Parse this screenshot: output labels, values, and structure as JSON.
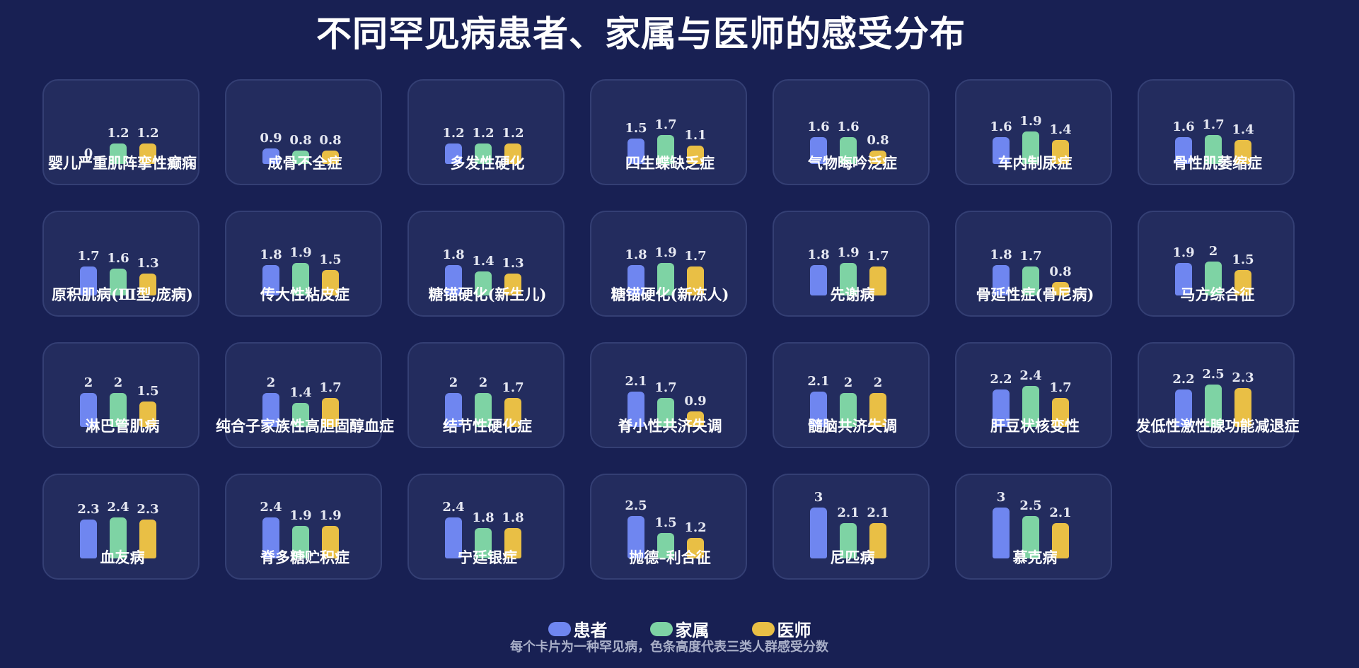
{
  "title": "不同罕见病患者、家属与医师的感受分布",
  "footnote": "每个卡片为一种罕见病，色条高度代表三类人群感受分数",
  "colors": {
    "patient": "#6f86f0",
    "family": "#7ed3a4",
    "doctor": "#e9bf45",
    "background": "#182053",
    "card": "#232c5e"
  },
  "legend": [
    {
      "label": "患者",
      "color": "#6f86f0"
    },
    {
      "label": "家属",
      "color": "#7ed3a4"
    },
    {
      "label": "医师",
      "color": "#e9bf45"
    }
  ],
  "chart_data": {
    "type": "bar",
    "series_names": [
      "患者",
      "家属",
      "医师"
    ],
    "categories": [
      {
        "name": "婴儿严重肌阵挛性癫痫",
        "values": [
          0,
          1.2,
          1.2
        ]
      },
      {
        "name": "成骨不全症",
        "values": [
          0.9,
          0.8,
          0.8
        ]
      },
      {
        "name": "多发性硬化",
        "values": [
          1.2,
          1.2,
          1.2
        ]
      },
      {
        "name": "四生蝶缺乏症",
        "values": [
          1.5,
          1.7,
          1.1
        ]
      },
      {
        "name": "气物晦吟泛症",
        "values": [
          1.6,
          1.6,
          0.8
        ]
      },
      {
        "name": "车内制尿症",
        "values": [
          1.6,
          1.9,
          1.4
        ]
      },
      {
        "name": "骨性肌萎缩症",
        "values": [
          1.6,
          1.7,
          1.4
        ]
      },
      {
        "name": "原积肌病(Ⅲ型,庞病)",
        "values": [
          1.7,
          1.6,
          1.3
        ]
      },
      {
        "name": "传大性粘皮症",
        "values": [
          1.8,
          1.9,
          1.5
        ]
      },
      {
        "name": "糖锚硬化(新生儿)",
        "values": [
          1.8,
          1.4,
          1.3
        ]
      },
      {
        "name": "糖锚硬化(新冻人)",
        "values": [
          1.8,
          1.9,
          1.7
        ]
      },
      {
        "name": "先谢病",
        "values": [
          1.8,
          1.9,
          1.7
        ]
      },
      {
        "name": "骨延性症(骨尼病)",
        "values": [
          1.8,
          1.7,
          0.8
        ]
      },
      {
        "name": "马方综合征",
        "values": [
          1.9,
          2,
          1.5
        ]
      },
      {
        "name": "淋巴管肌病",
        "values": [
          2,
          2,
          1.5
        ]
      },
      {
        "name": "纯合子家族性高胆固醇血症",
        "values": [
          2,
          1.4,
          1.7
        ]
      },
      {
        "name": "结节性硬化症",
        "values": [
          2,
          2,
          1.7
        ]
      },
      {
        "name": "脊小性共济失调",
        "values": [
          2.1,
          1.7,
          0.9
        ]
      },
      {
        "name": "髓脑共济失调",
        "values": [
          2.1,
          2,
          2
        ]
      },
      {
        "name": "肝豆状核变性",
        "values": [
          2.2,
          2.4,
          1.7
        ]
      },
      {
        "name": "发低性激性腺功能减退症",
        "values": [
          2.2,
          2.5,
          2.3
        ]
      },
      {
        "name": "血友病",
        "values": [
          2.3,
          2.4,
          2.3
        ]
      },
      {
        "name": "脊多糖贮积症",
        "values": [
          2.4,
          1.9,
          1.9
        ]
      },
      {
        "name": "宁廷银症",
        "values": [
          2.4,
          1.8,
          1.8
        ]
      },
      {
        "name": "抛德–利合征",
        "values": [
          2.5,
          1.5,
          1.2
        ]
      },
      {
        "name": "尼匹病",
        "values": [
          3,
          2.1,
          2.1
        ]
      },
      {
        "name": "慕克病",
        "values": [
          3,
          2.5,
          2.1
        ]
      }
    ],
    "ymax": 3
  }
}
